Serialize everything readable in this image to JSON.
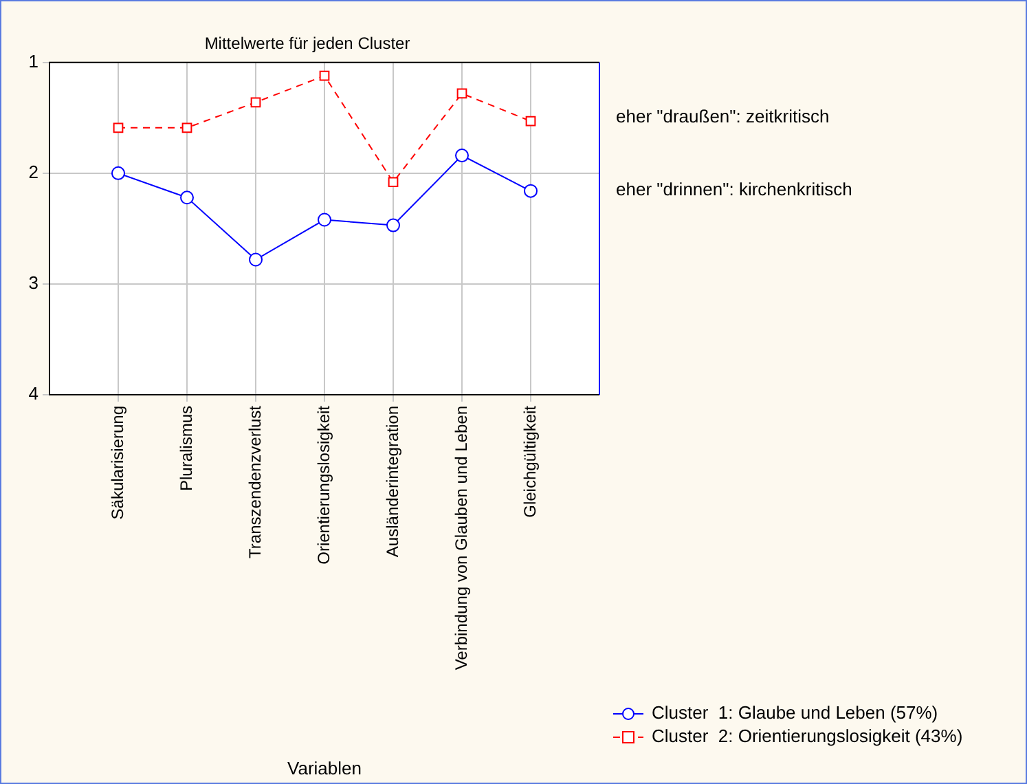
{
  "chart_data": {
    "type": "line",
    "title": "Mittelwerte für jeden Cluster",
    "xlabel": "Variablen",
    "categories": [
      "Säkularisierung",
      "Pluralismus",
      "Transzendenzverlust",
      "Orientierungslosigkeit",
      "Ausländerintegration",
      "Verbindung von Glauben und Leben",
      "Gleichgültigkeit"
    ],
    "series": [
      {
        "name": "Cluster  1: Glaube und Leben (57%)",
        "color": "#0000ff",
        "values": [
          2.0,
          2.22,
          2.78,
          2.42,
          2.47,
          1.84,
          2.16
        ],
        "marker": "circle",
        "line_style": "solid"
      },
      {
        "name": "Cluster  2: Orientierungslosigkeit (43%)",
        "color": "#ff0000",
        "values": [
          1.59,
          1.59,
          1.36,
          1.12,
          2.08,
          1.28,
          1.53
        ],
        "marker": "square",
        "line_style": "dashed"
      }
    ],
    "ylim": [
      4,
      1
    ],
    "yticks": [
      1,
      2,
      3,
      4
    ],
    "grid": true,
    "legend": "bottom right",
    "annotations": [
      "eher \"draußen\": zeitkritisch",
      "eher \"drinnen\": kirchenkritisch"
    ]
  }
}
